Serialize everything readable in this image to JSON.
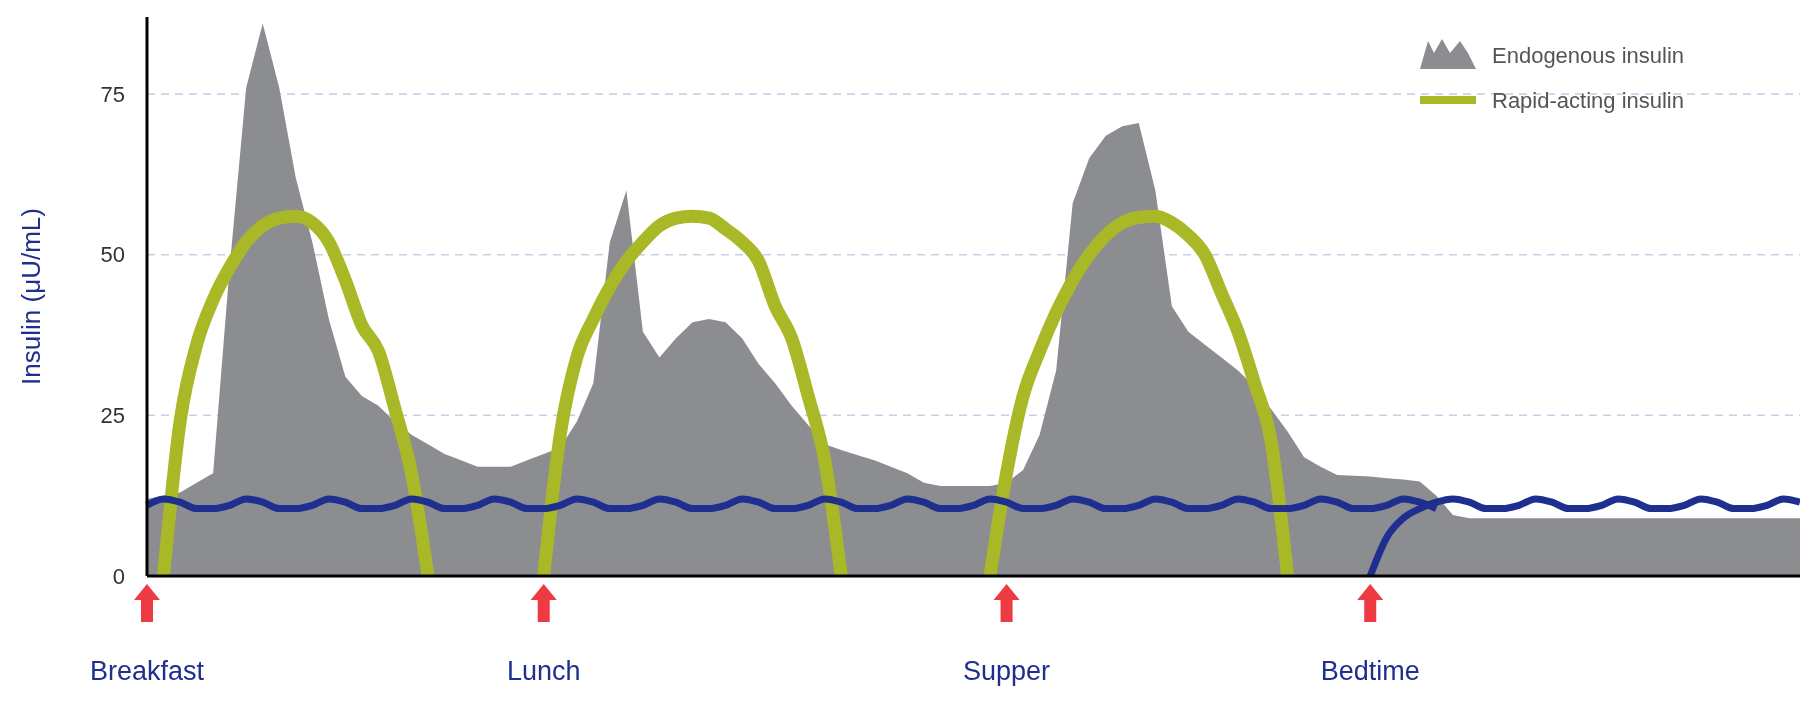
{
  "chart_data": {
    "type": "area",
    "ylabel": "Insulin (μU/mL)",
    "categories": [
      "Breakfast",
      null,
      null,
      null,
      null,
      null,
      null,
      null,
      null,
      null,
      null,
      null,
      null,
      null,
      null,
      null,
      null,
      null,
      null,
      null,
      null,
      null,
      null,
      null,
      "Lunch",
      null,
      null,
      null,
      null,
      null,
      null,
      null,
      null,
      null,
      null,
      null,
      null,
      null,
      null,
      null,
      null,
      null,
      null,
      null,
      null,
      null,
      null,
      null,
      null,
      null,
      null,
      null,
      "Supper",
      null,
      null,
      null,
      null,
      null,
      null,
      null,
      null,
      null,
      null,
      null,
      null,
      null,
      null,
      null,
      null,
      null,
      null,
      null,
      null,
      null,
      "Bedtime",
      null,
      null,
      null,
      null,
      null,
      null,
      null,
      null,
      null,
      null,
      null,
      null,
      null,
      null,
      null,
      null,
      null,
      null,
      null,
      null,
      null,
      null,
      null,
      null,
      null,
      null
    ],
    "ylim": [
      0,
      87
    ],
    "yticks": [
      0,
      25,
      50,
      75
    ],
    "grid": "y",
    "legend": "top right",
    "series": [
      {
        "name": "Endogenous insulin",
        "color": "#8c8d90",
        "values": [
          12,
          12.5,
          13,
          14.5,
          16,
          48,
          76,
          86,
          76,
          62,
          52,
          40,
          31,
          28,
          26.5,
          24,
          22,
          20.5,
          19,
          18,
          17,
          17,
          17,
          18,
          19,
          20,
          24,
          30,
          52,
          60,
          38,
          34,
          37,
          39.5,
          40,
          39.5,
          37,
          33,
          30,
          26.5,
          23.5,
          20.5,
          19.6,
          18.8,
          18,
          17,
          16,
          14.5,
          14,
          14,
          14,
          14,
          14.5,
          16.5,
          22,
          32,
          58,
          65,
          68.5,
          70,
          70.5,
          60,
          42,
          38,
          36,
          34,
          32,
          29.5,
          26,
          22.5,
          18.5,
          17,
          15.7,
          15.6,
          15.5,
          15.2,
          15,
          14.7,
          12.5,
          9.5,
          9,
          9,
          9,
          9,
          9,
          9,
          9,
          9,
          9,
          9,
          9,
          9,
          9,
          9,
          9,
          9,
          9,
          9,
          9,
          9,
          9
        ]
      },
      {
        "name": "Rapid-acting insulin",
        "type": "line",
        "color": "#a9b826",
        "values": [
          null,
          0,
          24,
          36,
          43,
          48,
          52,
          54.5,
          55.7,
          56,
          55,
          52,
          46,
          39,
          35,
          26,
          16,
          0,
          null,
          null,
          null,
          null,
          null,
          null,
          0,
          22,
          34,
          40,
          45,
          49,
          52,
          54.5,
          55.7,
          56,
          55.7,
          54,
          52,
          49,
          42,
          37,
          28,
          18,
          0,
          null,
          null,
          null,
          null,
          null,
          null,
          null,
          null,
          0,
          16,
          28,
          35,
          41,
          46,
          50,
          53,
          55,
          55.8,
          56,
          55,
          53,
          50,
          44,
          38,
          30,
          21,
          0,
          null,
          null,
          null,
          null,
          null,
          null,
          null,
          null,
          null,
          null,
          null,
          null,
          null,
          null,
          null,
          null,
          null,
          null,
          null,
          null,
          null,
          null,
          null,
          null,
          null,
          null,
          null,
          null,
          null,
          null,
          null
        ]
      },
      {
        "type": "line",
        "color": "#1e2f8f",
        "values": [
          11,
          12,
          11.5,
          10.5,
          10.5,
          11,
          12,
          11.5,
          10.5,
          10.5,
          11,
          12,
          11.5,
          10.5,
          10.5,
          11,
          12,
          11.5,
          10.5,
          10.5,
          11,
          12,
          11.5,
          10.5,
          10.5,
          11,
          12,
          11.5,
          10.5,
          10.5,
          11,
          12,
          11.5,
          10.5,
          10.5,
          11,
          12,
          11.5,
          10.5,
          10.5,
          11,
          12,
          11.5,
          10.5,
          10.5,
          11,
          12,
          11.5,
          10.5,
          10.5,
          11,
          12,
          11.5,
          10.5,
          10.5,
          11,
          12,
          11.5,
          10.5,
          10.5,
          11,
          12,
          11.5,
          10.5,
          10.5,
          11,
          12,
          11.5,
          10.5,
          10.5,
          11,
          12,
          11.5,
          10.5,
          10.5,
          11,
          12,
          11.5,
          10.5,
          null,
          null,
          null,
          null,
          null,
          null,
          null,
          null,
          null,
          null,
          null,
          null,
          null,
          null,
          null,
          null,
          null,
          null,
          null,
          null,
          null,
          null
        ]
      },
      {
        "type": "line",
        "color": "#1e2f8f",
        "values": [
          null,
          null,
          null,
          null,
          null,
          null,
          null,
          null,
          null,
          null,
          null,
          null,
          null,
          null,
          null,
          null,
          null,
          null,
          null,
          null,
          null,
          null,
          null,
          null,
          null,
          null,
          null,
          null,
          null,
          null,
          null,
          null,
          null,
          null,
          null,
          null,
          null,
          null,
          null,
          null,
          null,
          null,
          null,
          null,
          null,
          null,
          null,
          null,
          null,
          null,
          null,
          null,
          null,
          null,
          null,
          null,
          null,
          null,
          null,
          null,
          null,
          null,
          null,
          null,
          null,
          null,
          null,
          null,
          null,
          null,
          null,
          null,
          null,
          null,
          0,
          6,
          9,
          10.5,
          11.5,
          12,
          11.5,
          10.5,
          10.5,
          11,
          12,
          11.5,
          10.5,
          10.5,
          11,
          12,
          11.5,
          10.5,
          10.5,
          11,
          12,
          11.5,
          10.5,
          10.5,
          11,
          12,
          11.5
        ]
      }
    ]
  }
}
